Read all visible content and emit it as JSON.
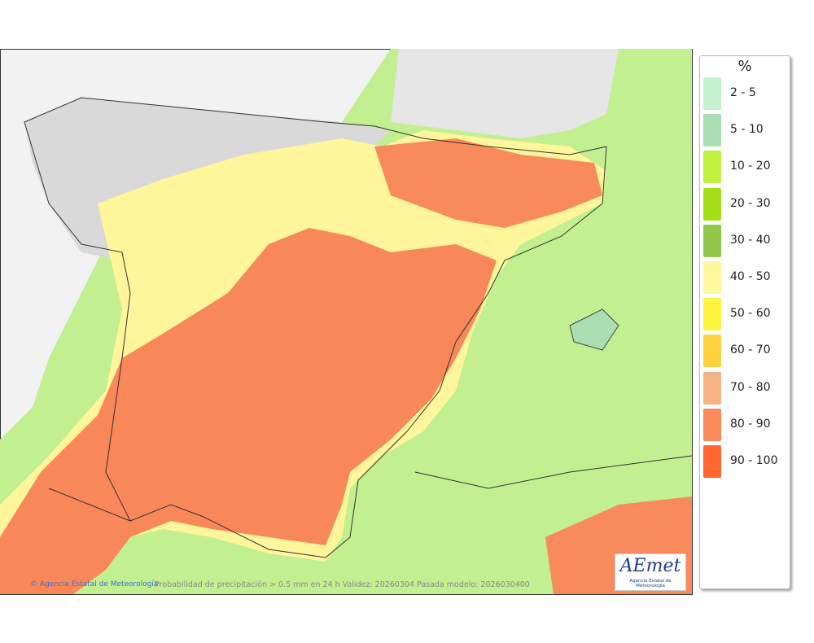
{
  "legend": {
    "title": "%",
    "items": [
      {
        "label": "2 - 5",
        "color": "#c6f2cf"
      },
      {
        "label": "5 - 10",
        "color": "#a9dfb2"
      },
      {
        "label": "10 - 20",
        "color": "#bff23e"
      },
      {
        "label": "20 - 30",
        "color": "#a4e016"
      },
      {
        "label": "30 - 40",
        "color": "#93c74a"
      },
      {
        "label": "40 - 50",
        "color": "#fff79c"
      },
      {
        "label": "50 - 60",
        "color": "#fff43c"
      },
      {
        "label": "60 - 70",
        "color": "#ffd23e"
      },
      {
        "label": "70 - 80",
        "color": "#f6b384"
      },
      {
        "label": "80 - 90",
        "color": "#f88a5c"
      },
      {
        "label": "90 - 100",
        "color": "#ff6630"
      }
    ]
  },
  "footer": {
    "credit": "Agencia Estatal de Meteorología",
    "caption": "Probabilidad de precipitación > 0.5 mm en 24 h Validez: 20260304 Pasada modelo: 2026030400"
  },
  "logo": {
    "text": "AEmet",
    "subtitle": "Agencia Estatal de Meteorología"
  }
}
